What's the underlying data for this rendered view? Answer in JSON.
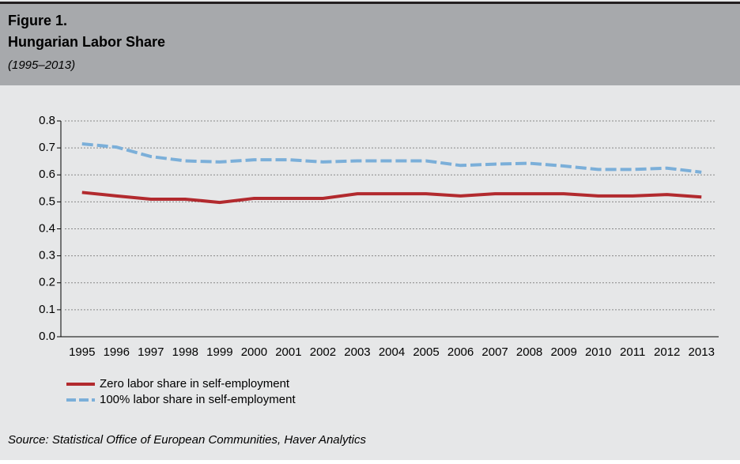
{
  "chart_data": {
    "type": "line",
    "figure_label": "Figure 1.",
    "title": "Hungarian Labor Share",
    "subtitle": "(1995–2013)",
    "source": "Source: Statistical Office of European Communities, Haver Analytics",
    "categories": [
      "1995",
      "1996",
      "1997",
      "1998",
      "1999",
      "2000",
      "2001",
      "2002",
      "2003",
      "2004",
      "2005",
      "2006",
      "2007",
      "2008",
      "2009",
      "2010",
      "2011",
      "2012",
      "2013"
    ],
    "series": [
      {
        "name": "Zero labor share in self-employment",
        "color": "#b22a2e",
        "dash": "solid",
        "values": [
          0.535,
          0.522,
          0.51,
          0.51,
          0.498,
          0.513,
          0.513,
          0.513,
          0.53,
          0.53,
          0.53,
          0.522,
          0.53,
          0.53,
          0.53,
          0.522,
          0.522,
          0.527,
          0.518
        ]
      },
      {
        "name": "100% labor share in self-employment",
        "color": "#7bafd9",
        "dash": "dashed",
        "values": [
          0.715,
          0.703,
          0.668,
          0.652,
          0.648,
          0.656,
          0.656,
          0.648,
          0.652,
          0.652,
          0.652,
          0.635,
          0.64,
          0.643,
          0.633,
          0.62,
          0.62,
          0.625,
          0.61
        ]
      }
    ],
    "ylim": [
      0,
      0.8
    ],
    "yticks": [
      {
        "value": 0,
        "label": "0.0"
      },
      0.1,
      0.2,
      0.3,
      0.4,
      0.5,
      0.6,
      0.7,
      0.8
    ],
    "grid": true
  }
}
